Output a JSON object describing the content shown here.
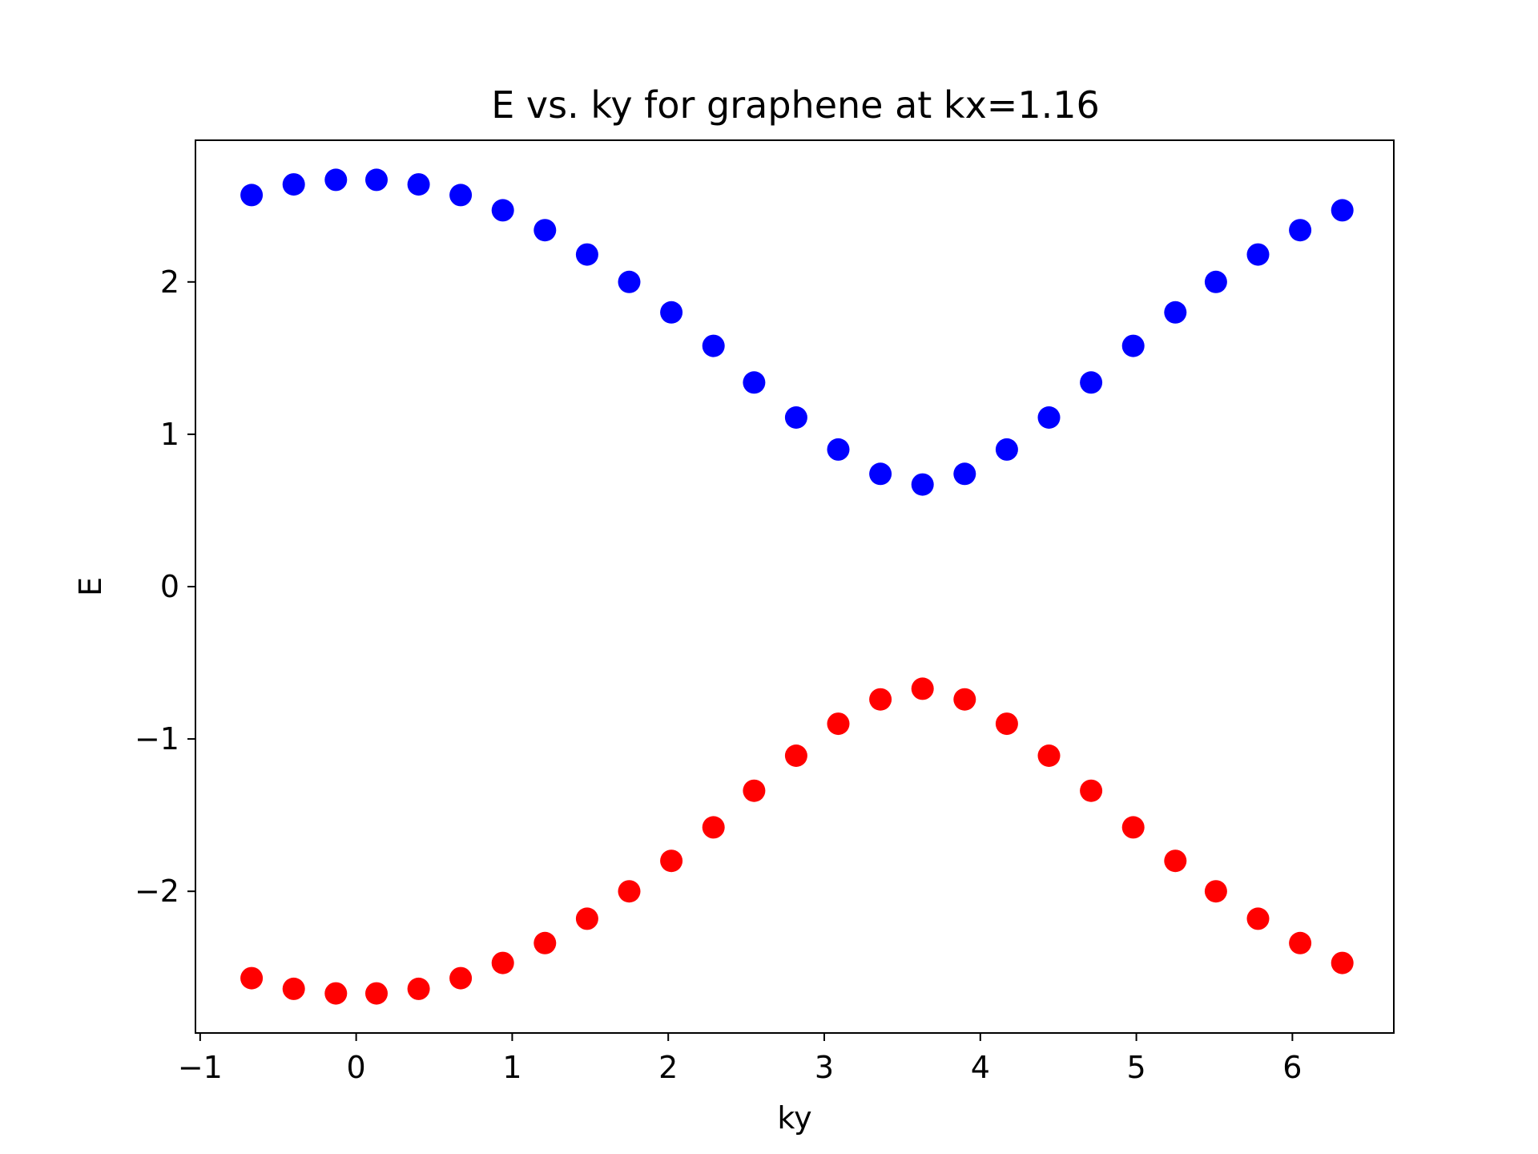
{
  "chart_data": {
    "type": "scatter",
    "title": "E vs. ky for graphene at kx=1.16",
    "xlabel": "ky",
    "ylabel": "E",
    "xlim": [
      -1.03,
      6.65
    ],
    "ylim": [
      -2.93,
      2.93
    ],
    "xticks": [
      -1,
      0,
      1,
      2,
      3,
      4,
      5,
      6
    ],
    "xtick_labels": [
      "−1",
      "0",
      "1",
      "2",
      "3",
      "4",
      "5",
      "6"
    ],
    "yticks": [
      -2,
      -1,
      0,
      1,
      2
    ],
    "ytick_labels": [
      "−2",
      "−1",
      "0",
      "1",
      "2"
    ],
    "grid": false,
    "x": [
      -0.67,
      -0.4,
      -0.13,
      0.13,
      0.4,
      0.67,
      0.94,
      1.21,
      1.48,
      1.75,
      2.02,
      2.29,
      2.55,
      2.82,
      3.09,
      3.36,
      3.63,
      3.9,
      4.17,
      4.44,
      4.71,
      4.98,
      5.25,
      5.51,
      5.78,
      6.05,
      6.32
    ],
    "series": [
      {
        "color": "#0000ff",
        "values": [
          2.57,
          2.64,
          2.67,
          2.67,
          2.64,
          2.57,
          2.47,
          2.34,
          2.18,
          2.0,
          1.8,
          1.58,
          1.34,
          1.11,
          0.9,
          0.74,
          0.67,
          0.74,
          0.9,
          1.11,
          1.34,
          1.58,
          1.8,
          2.0,
          2.18,
          2.34,
          2.47
        ]
      },
      {
        "color": "#ff0000",
        "values": [
          -2.57,
          -2.64,
          -2.67,
          -2.67,
          -2.64,
          -2.57,
          -2.47,
          -2.34,
          -2.18,
          -2.0,
          -1.8,
          -1.58,
          -1.34,
          -1.11,
          -0.9,
          -0.74,
          -0.67,
          -0.74,
          -0.9,
          -1.11,
          -1.34,
          -1.58,
          -1.8,
          -2.0,
          -2.18,
          -2.34,
          -2.47
        ]
      }
    ]
  }
}
